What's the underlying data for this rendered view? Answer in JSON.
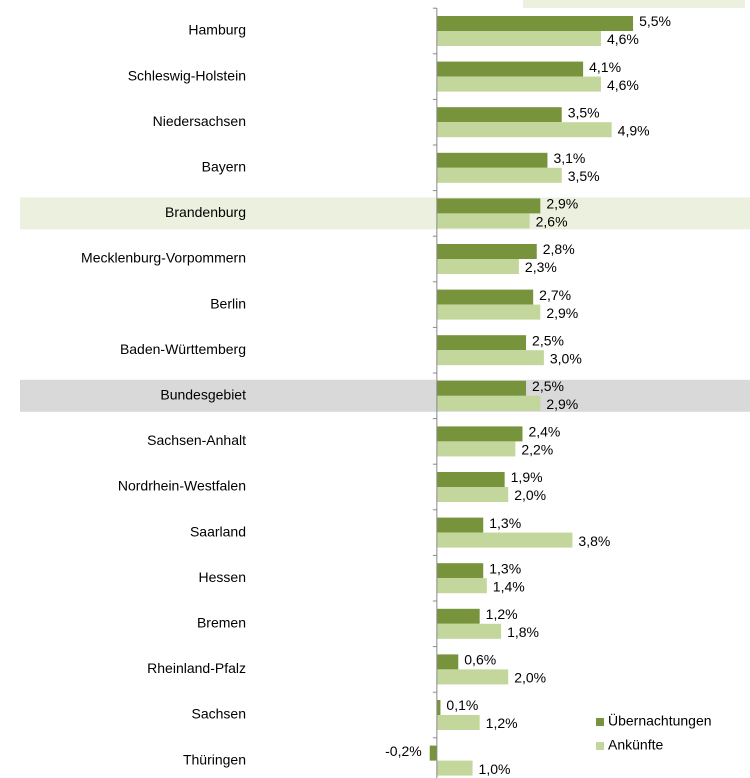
{
  "chart_data": {
    "type": "bar",
    "orientation": "horizontal",
    "categories": [
      "Hamburg",
      "Schleswig-Holstein",
      "Niedersachsen",
      "Bayern",
      "Brandenburg",
      "Mecklenburg-Vorpommern",
      "Berlin",
      "Baden-Württemberg",
      "Bundesgebiet",
      "Sachsen-Anhalt",
      "Nordrhein-Westfalen",
      "Saarland",
      "Hessen",
      "Bremen",
      "Rheinland-Pfalz",
      "Sachsen",
      "Thüringen"
    ],
    "series": [
      {
        "name": "Übernachtungen",
        "color": "#77933c",
        "values": [
          5.5,
          4.1,
          3.5,
          3.1,
          2.9,
          2.8,
          2.7,
          2.5,
          2.5,
          2.4,
          1.9,
          1.3,
          1.3,
          1.2,
          0.6,
          0.1,
          -0.2
        ],
        "value_labels": [
          "5,5%",
          "4,1%",
          "3,5%",
          "3,1%",
          "2,9%",
          "2,8%",
          "2,7%",
          "2,5%",
          "2,5%",
          "2,4%",
          "1,9%",
          "1,3%",
          "1,3%",
          "1,2%",
          "0,6%",
          "0,1%",
          "-0,2%"
        ]
      },
      {
        "name": "Ankünfte",
        "color": "#c3d69b",
        "values": [
          4.6,
          4.6,
          4.9,
          3.5,
          2.6,
          2.3,
          2.9,
          3.0,
          2.9,
          2.2,
          2.0,
          3.8,
          1.4,
          1.8,
          2.0,
          1.2,
          1.0
        ],
        "value_labels": [
          "4,6%",
          "4,6%",
          "4,9%",
          "3,5%",
          "2,6%",
          "2,3%",
          "2,9%",
          "3,0%",
          "2,9%",
          "2,2%",
          "2,0%",
          "3,8%",
          "1,4%",
          "1,8%",
          "2,0%",
          "1,2%",
          "1,0%"
        ]
      }
    ],
    "xlim": [
      -5,
      8.75
    ],
    "highlights": [
      {
        "category_index": 4,
        "color": "#ebf1de"
      },
      {
        "category_index": 8,
        "color": "#d9d9d9"
      }
    ],
    "legend": "lower right"
  }
}
